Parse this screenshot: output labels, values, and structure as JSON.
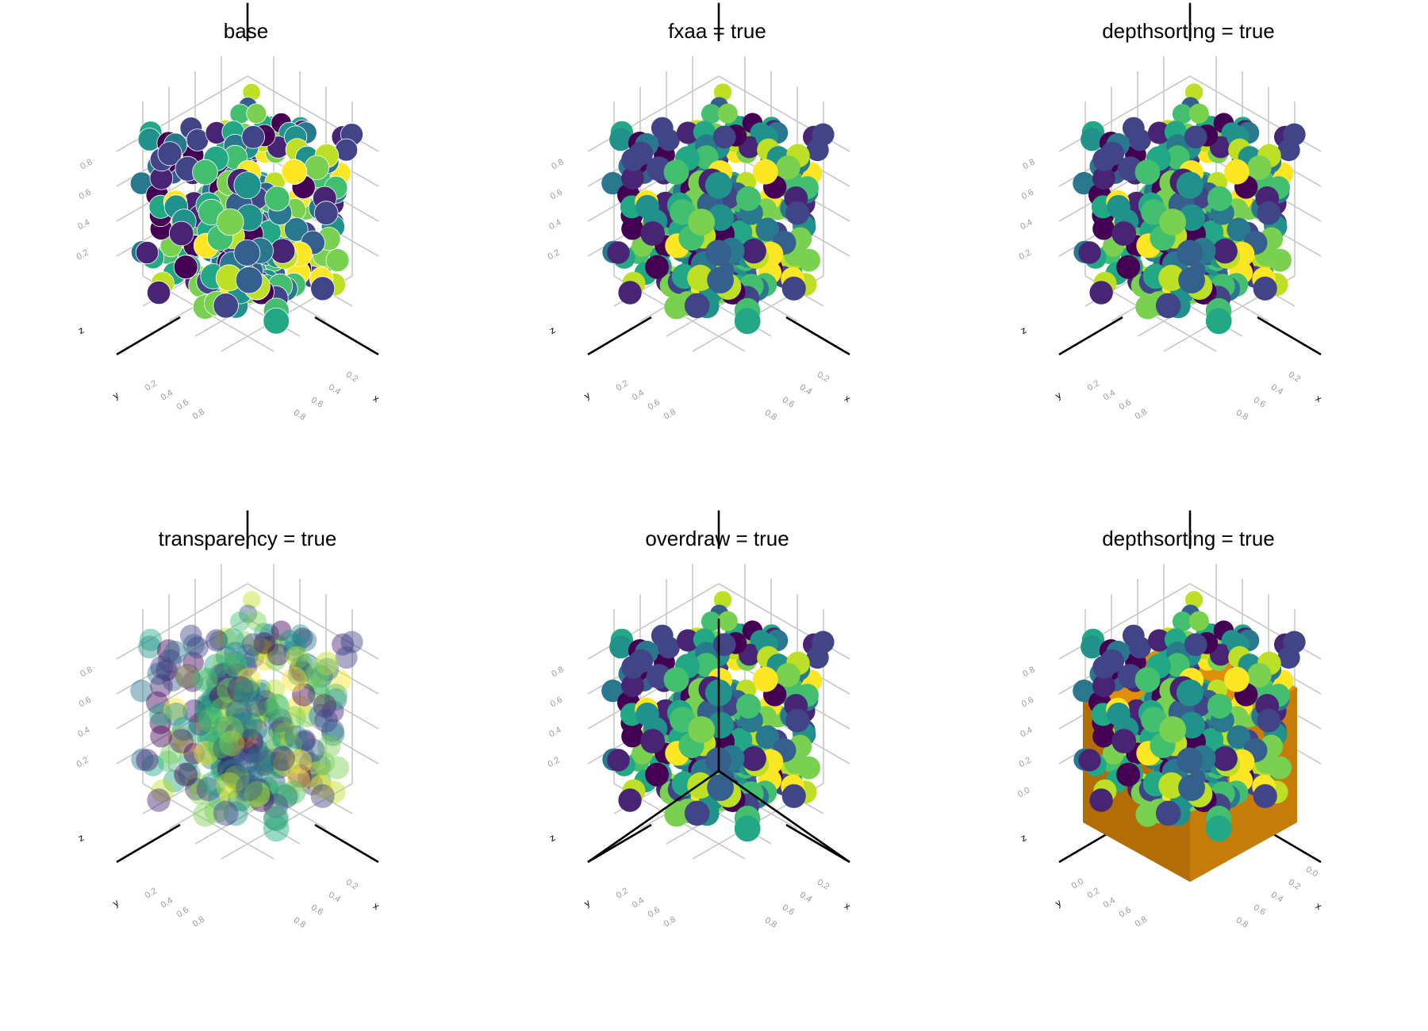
{
  "colors": {
    "axis": "#000000",
    "grid": "#c8c8c8",
    "tick_label": "#9a9a9a",
    "cube": "#e08e0b",
    "cube_shadow": "#b26d07",
    "viridis": [
      "#440154",
      "#482475",
      "#414487",
      "#355f8d",
      "#2a788e",
      "#21918c",
      "#22a884",
      "#44bf70",
      "#7ad151",
      "#bddf26",
      "#fde725"
    ]
  },
  "chart_data": [
    {
      "type": "scatter3d",
      "title": "base",
      "xlabel": "x",
      "ylabel": "y",
      "zlabel": "z",
      "xticks": [
        "0.2",
        "0.4",
        "0.6",
        "0.8"
      ],
      "yticks": [
        "0.2",
        "0.4",
        "0.6",
        "0.8"
      ],
      "zticks": [
        "0.2",
        "0.4",
        "0.6",
        "0.8"
      ],
      "xlim": [
        0,
        1
      ],
      "ylim": [
        0,
        1
      ],
      "zlim": [
        0,
        1
      ],
      "points": 300,
      "seed": 7,
      "style": "base"
    },
    {
      "type": "scatter3d",
      "title": "fxaa = true",
      "xlabel": "x",
      "ylabel": "y",
      "zlabel": "z",
      "xticks": [
        "0.2",
        "0.4",
        "0.6",
        "0.8"
      ],
      "yticks": [
        "0.2",
        "0.4",
        "0.6",
        "0.8"
      ],
      "zticks": [
        "0.2",
        "0.4",
        "0.6",
        "0.8"
      ],
      "xlim": [
        0,
        1
      ],
      "ylim": [
        0,
        1
      ],
      "zlim": [
        0,
        1
      ],
      "points": 300,
      "seed": 7,
      "style": "fxaa"
    },
    {
      "type": "scatter3d",
      "title": "depthsorting = true",
      "xlabel": "x",
      "ylabel": "y",
      "zlabel": "z",
      "xticks": [
        "0.2",
        "0.4",
        "0.6",
        "0.8"
      ],
      "yticks": [
        "0.2",
        "0.4",
        "0.6",
        "0.8"
      ],
      "zticks": [
        "0.2",
        "0.4",
        "0.6",
        "0.8"
      ],
      "xlim": [
        0,
        1
      ],
      "ylim": [
        0,
        1
      ],
      "zlim": [
        0,
        1
      ],
      "points": 300,
      "seed": 7,
      "style": "depthsorting"
    },
    {
      "type": "scatter3d",
      "title": "transparency = true",
      "xlabel": "x",
      "ylabel": "y",
      "zlabel": "z",
      "xticks": [
        "0.2",
        "0.4",
        "0.6",
        "0.8"
      ],
      "yticks": [
        "0.2",
        "0.4",
        "0.6",
        "0.8"
      ],
      "zticks": [
        "0.2",
        "0.4",
        "0.6",
        "0.8"
      ],
      "xlim": [
        0,
        1
      ],
      "ylim": [
        0,
        1
      ],
      "zlim": [
        0,
        1
      ],
      "points": 300,
      "seed": 7,
      "style": "transparency"
    },
    {
      "type": "scatter3d",
      "title": "overdraw = true",
      "xlabel": "x",
      "ylabel": "y",
      "zlabel": "z",
      "xticks": [
        "0.2",
        "0.4",
        "0.6",
        "0.8"
      ],
      "yticks": [
        "0.2",
        "0.4",
        "0.6",
        "0.8"
      ],
      "zticks": [
        "0.2",
        "0.4",
        "0.6",
        "0.8"
      ],
      "xlim": [
        0,
        1
      ],
      "ylim": [
        0,
        1
      ],
      "zlim": [
        0,
        1
      ],
      "points": 300,
      "seed": 7,
      "style": "overdraw"
    },
    {
      "type": "scatter3d",
      "title": "depthsorting = true",
      "xlabel": "x",
      "ylabel": "y",
      "zlabel": "z",
      "xticks": [
        "0.0",
        "0.2",
        "0.4",
        "0.6",
        "0.8"
      ],
      "yticks": [
        "0.0",
        "0.2",
        "0.4",
        "0.6",
        "0.8"
      ],
      "zticks": [
        "0.0",
        "0.2",
        "0.4",
        "0.6",
        "0.8"
      ],
      "xlim": [
        0,
        1
      ],
      "ylim": [
        0,
        1
      ],
      "zlim": [
        0,
        1
      ],
      "points": 300,
      "seed": 7,
      "style": "depthsorting_cube"
    }
  ]
}
